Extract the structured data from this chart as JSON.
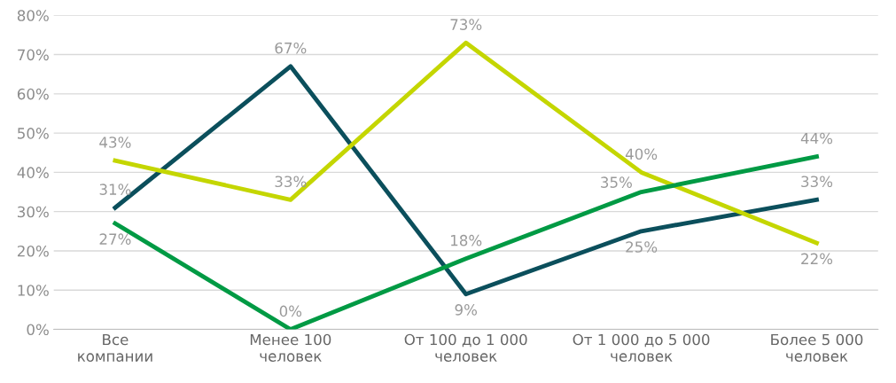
{
  "chart_data": {
    "type": "line",
    "categories": [
      "Все\nкомпании",
      "Менее 100\nчеловек",
      "От 100 до 1 000\nчеловек",
      "От 1 000 до 5 000\nчеловек",
      "Более 5 000\nчеловек"
    ],
    "series": [
      {
        "color": "#0b4f5c",
        "values": [
          31,
          67,
          9,
          25,
          33
        ],
        "value_labels": [
          "31%",
          "67%",
          "9%",
          "25%",
          "33%"
        ]
      },
      {
        "color": "#c4d600",
        "values": [
          43,
          33,
          73,
          40,
          22
        ],
        "value_labels": [
          "43%",
          "33%",
          "73%",
          "40%",
          "22%"
        ]
      },
      {
        "color": "#009a44",
        "values": [
          27,
          0,
          18,
          35,
          44
        ],
        "value_labels": [
          "27%",
          "0%",
          "18%",
          "35%",
          "44%"
        ]
      }
    ],
    "ylim": [
      0,
      80
    ],
    "yticks": [
      {
        "value": 0,
        "label": "0%"
      },
      {
        "value": 10,
        "label": "10%"
      },
      {
        "value": 20,
        "label": "20%"
      },
      {
        "value": 30,
        "label": "30%"
      },
      {
        "value": 40,
        "label": "40%"
      },
      {
        "value": 50,
        "label": "50%"
      },
      {
        "value": 60,
        "label": "60%"
      },
      {
        "value": 70,
        "label": "70%"
      },
      {
        "value": 80,
        "label": "80%"
      }
    ],
    "grid": "y",
    "marker": "none",
    "line_style": "solid"
  }
}
